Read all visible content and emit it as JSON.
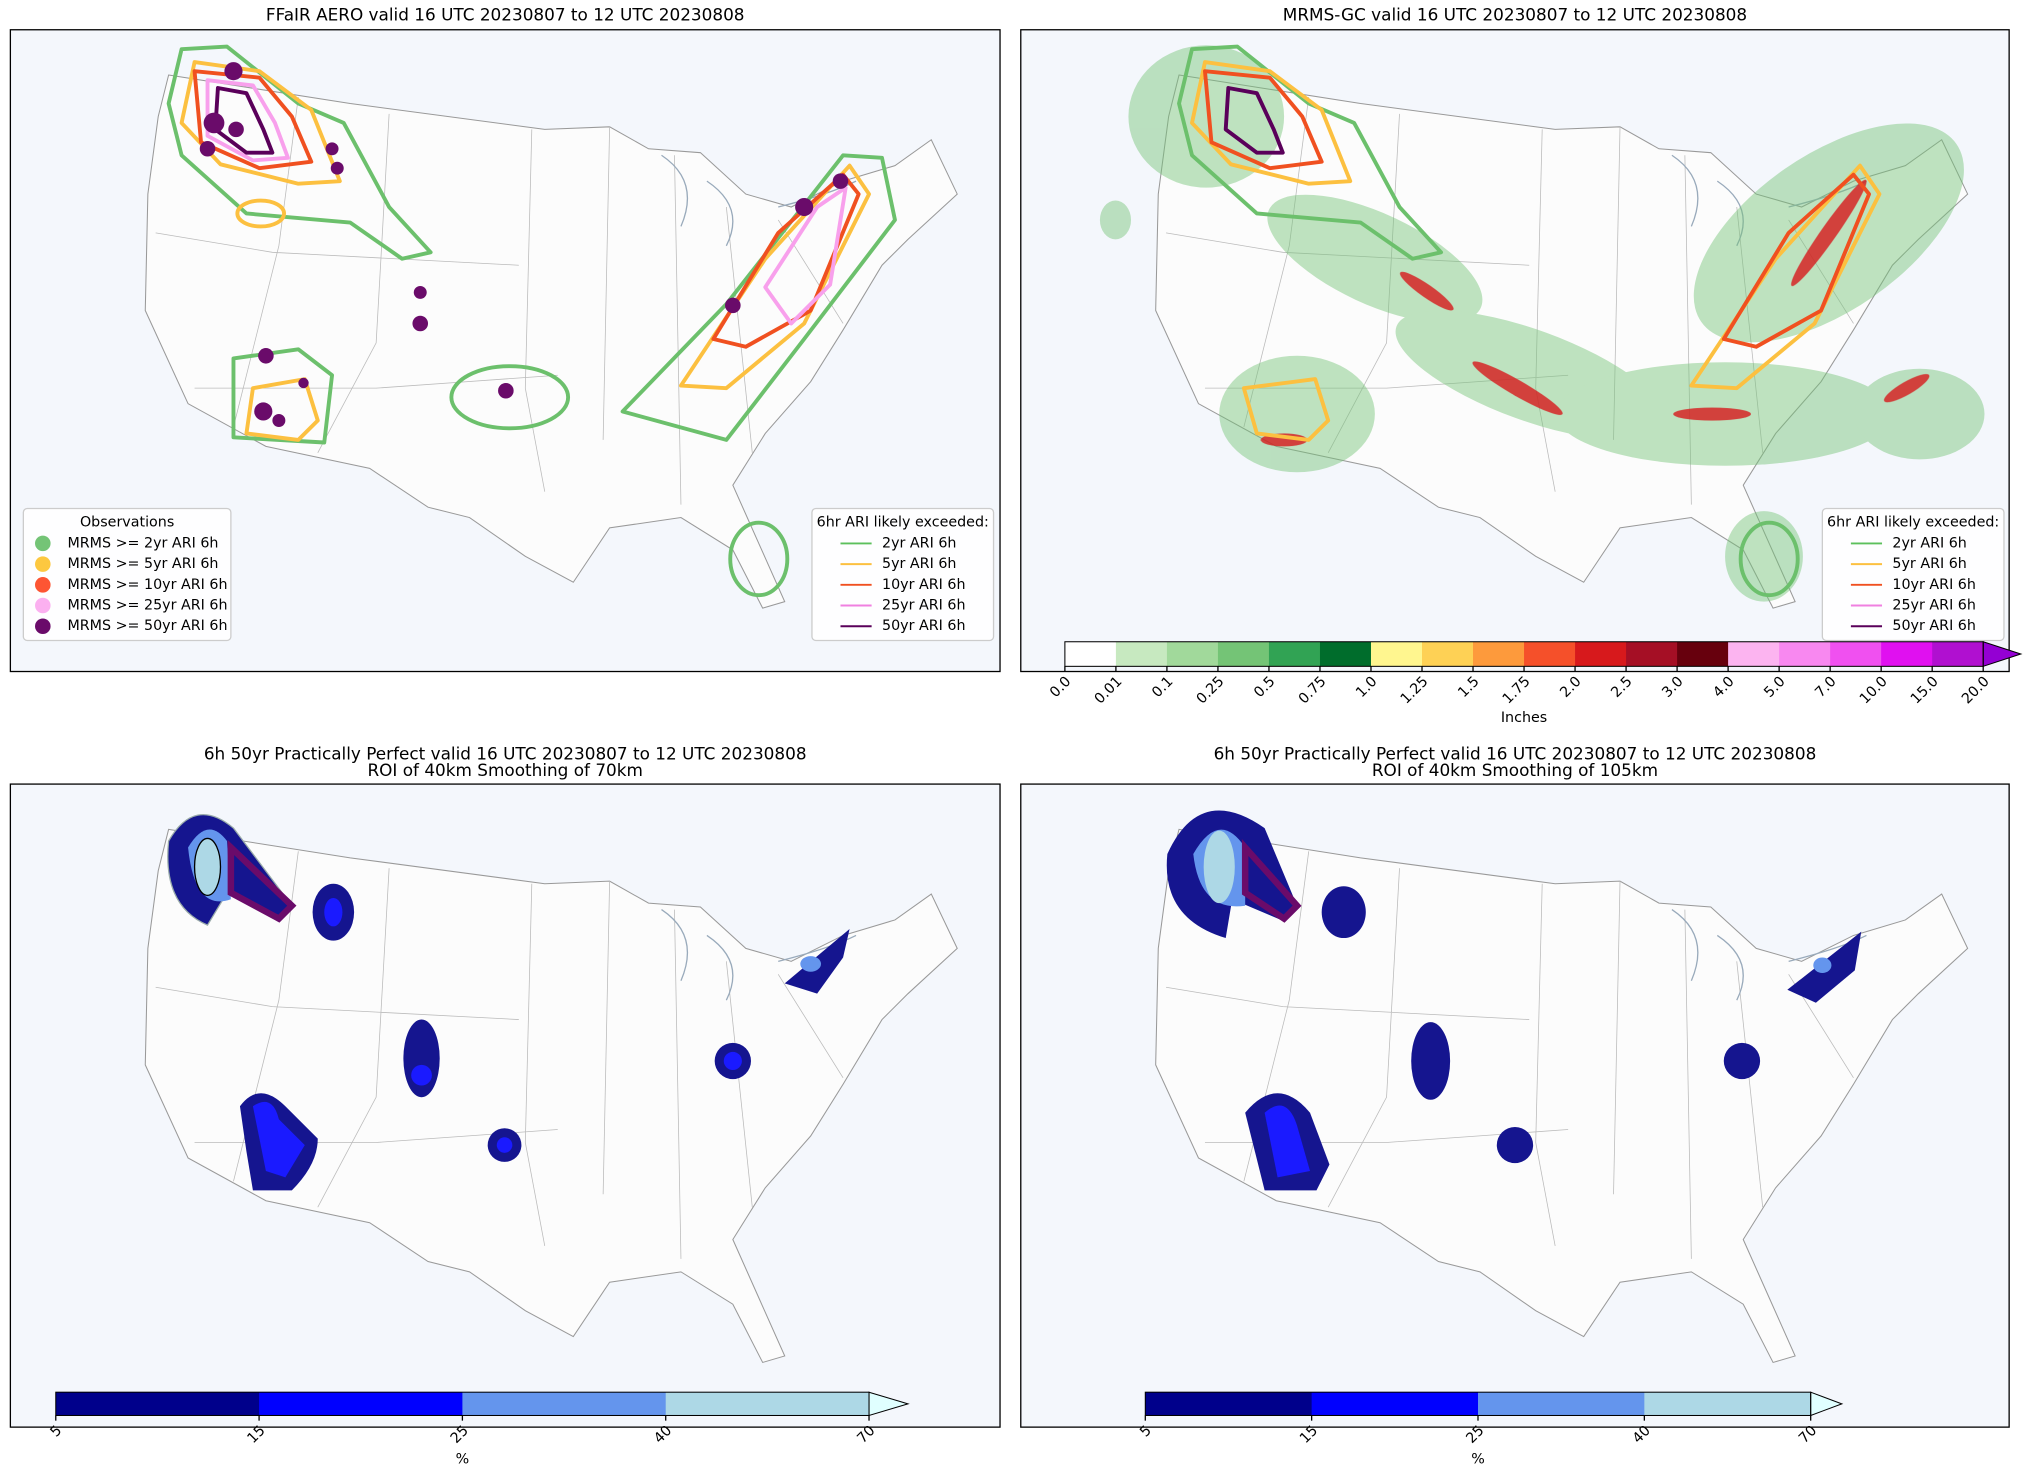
{
  "panels": [
    {
      "title": "FFaIR AERO valid 16 UTC 20230807 to 12 UTC 20230808",
      "legends": [
        {
          "title": "Observations",
          "marker": "circle",
          "items": [
            {
              "label": "MRMS >= 2yr ARI 6h",
              "color": "#74c476"
            },
            {
              "label": "MRMS >= 5yr ARI 6h",
              "color": "#fdc840"
            },
            {
              "label": "MRMS >= 10yr ARI 6h",
              "color": "#fd5533"
            },
            {
              "label": "MRMS >= 25yr ARI 6h",
              "color": "#fbb0f0"
            },
            {
              "label": "MRMS >= 50yr ARI 6h",
              "color": "#6a0b6a"
            }
          ]
        },
        {
          "title": "6hr ARI likely exceeded:",
          "marker": "line",
          "items": [
            {
              "label": "2yr ARI 6h",
              "color": "#5cc05c"
            },
            {
              "label": "5yr ARI 6h",
              "color": "#fcc040"
            },
            {
              "label": "10yr ARI 6h",
              "color": "#f05020"
            },
            {
              "label": "25yr ARI 6h",
              "color": "#f080e0"
            },
            {
              "label": "50yr ARI 6h",
              "color": "#5a005a"
            }
          ]
        }
      ]
    },
    {
      "title": "MRMS-GC valid 16 UTC 20230807 to 12 UTC 20230808",
      "legends": [
        {
          "title": "6hr ARI likely exceeded:",
          "marker": "line",
          "items": [
            {
              "label": "2yr ARI 6h",
              "color": "#5cc05c"
            },
            {
              "label": "5yr ARI 6h",
              "color": "#fcc040"
            },
            {
              "label": "10yr ARI 6h",
              "color": "#f05020"
            },
            {
              "label": "25yr ARI 6h",
              "color": "#f080e0"
            },
            {
              "label": "50yr ARI 6h",
              "color": "#5a005a"
            }
          ]
        }
      ],
      "colorbar": {
        "label": "Inches",
        "ticks": [
          "0.0",
          "0.01",
          "0.1",
          "0.25",
          "0.5",
          "0.75",
          "1.0",
          "1.25",
          "1.5",
          "1.75",
          "2.0",
          "2.5",
          "3.0",
          "4.0",
          "5.0",
          "7.0",
          "10.0",
          "15.0",
          "20.0"
        ],
        "colors": [
          "#ffffff",
          "#c7e9c0",
          "#a1d99b",
          "#74c476",
          "#31a354",
          "#006d2c",
          "#fff68f",
          "#fed155",
          "#fd9a3c",
          "#f5502a",
          "#d7191c",
          "#a50f25",
          "#67000d",
          "#fcb4f0",
          "#f888f0",
          "#f050f0",
          "#e010f0",
          "#b010d0"
        ],
        "extend_color": "#9400d3"
      }
    },
    {
      "title": "6h 50yr Practically Perfect valid 16 UTC 20230807 to 12 UTC 20230808",
      "subtitle": "ROI of 40km Smoothing of 70km",
      "colorbar": {
        "label": "%",
        "ticks": [
          "5",
          "15",
          "25",
          "40",
          "70"
        ],
        "colors": [
          "#00008b",
          "#0000ff",
          "#6495ed",
          "#add8e6"
        ],
        "extend_color": "#e0ffff"
      }
    },
    {
      "title": "6h 50yr Practically Perfect valid 16 UTC 20230807 to 12 UTC 20230808",
      "subtitle": "ROI of 40km Smoothing of 105km",
      "colorbar": {
        "label": "%",
        "ticks": [
          "5",
          "15",
          "25",
          "40",
          "70"
        ],
        "colors": [
          "#00008b",
          "#0000ff",
          "#6495ed",
          "#add8e6"
        ],
        "extend_color": "#e0ffff"
      }
    }
  ]
}
